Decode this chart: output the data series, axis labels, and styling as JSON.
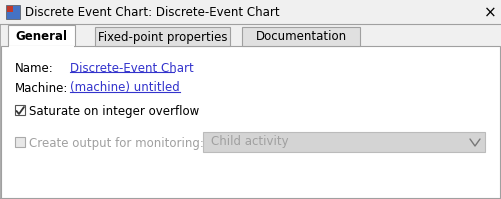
{
  "title_text": "Discrete Event Chart: Discrete-Event Chart",
  "bg_color": "#f0f0f0",
  "border_color": "#a0a0a0",
  "tabs": [
    "General",
    "Fixed-point properties",
    "Documentation"
  ],
  "name_label": "Name:",
  "name_value": "Discrete-Event Chart",
  "machine_label": "Machine:",
  "machine_value": "(machine) untitled",
  "link_color": "#3333cc",
  "checkbox1_label": "Saturate on integer overflow",
  "checkbox2_label": "Create output for monitoring:",
  "dropdown_text": "Child activity",
  "dropdown_bg": "#d4d4d4",
  "close_x": "×",
  "disabled_text_color": "#a0a0a0",
  "font_size": 8.5
}
